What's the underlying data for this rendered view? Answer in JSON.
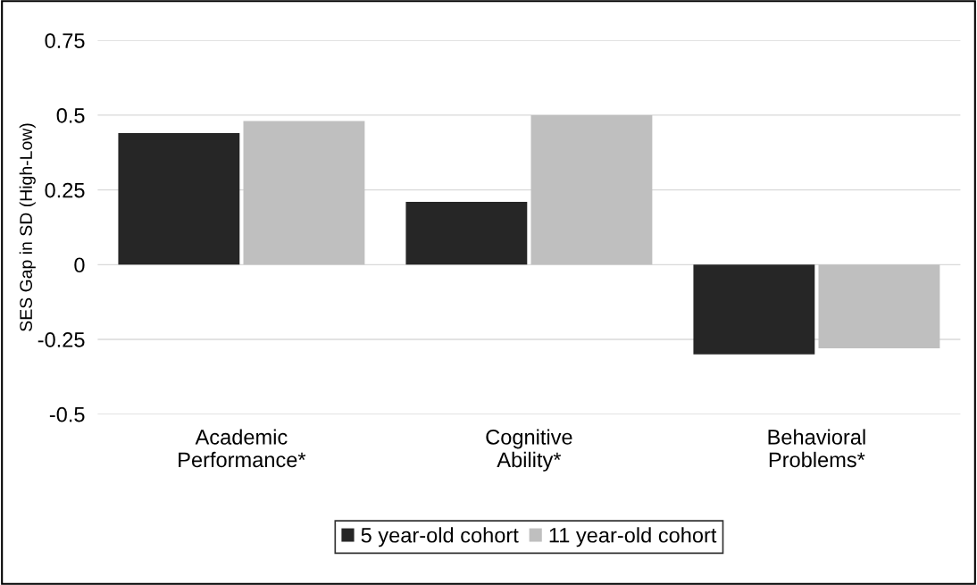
{
  "chart_data": {
    "type": "bar",
    "ylabel": "SES Gap in SD (High-Low)",
    "categories": [
      "Academic\nPerformance*",
      "Cognitive\nAbility*",
      "Behavioral\nProblems*"
    ],
    "series": [
      {
        "name": "5 year-old cohort",
        "color": "#262626",
        "values": [
          0.44,
          0.21,
          -0.3
        ]
      },
      {
        "name": "11 year-old cohort",
        "color": "#bfbfbf",
        "values": [
          0.48,
          0.5,
          -0.28
        ]
      }
    ],
    "ylim": [
      -0.5,
      0.75
    ],
    "yticks": [
      -0.5,
      -0.25,
      0,
      0.25,
      0.5,
      0.75
    ],
    "grid": "y",
    "legend": "bottom"
  }
}
